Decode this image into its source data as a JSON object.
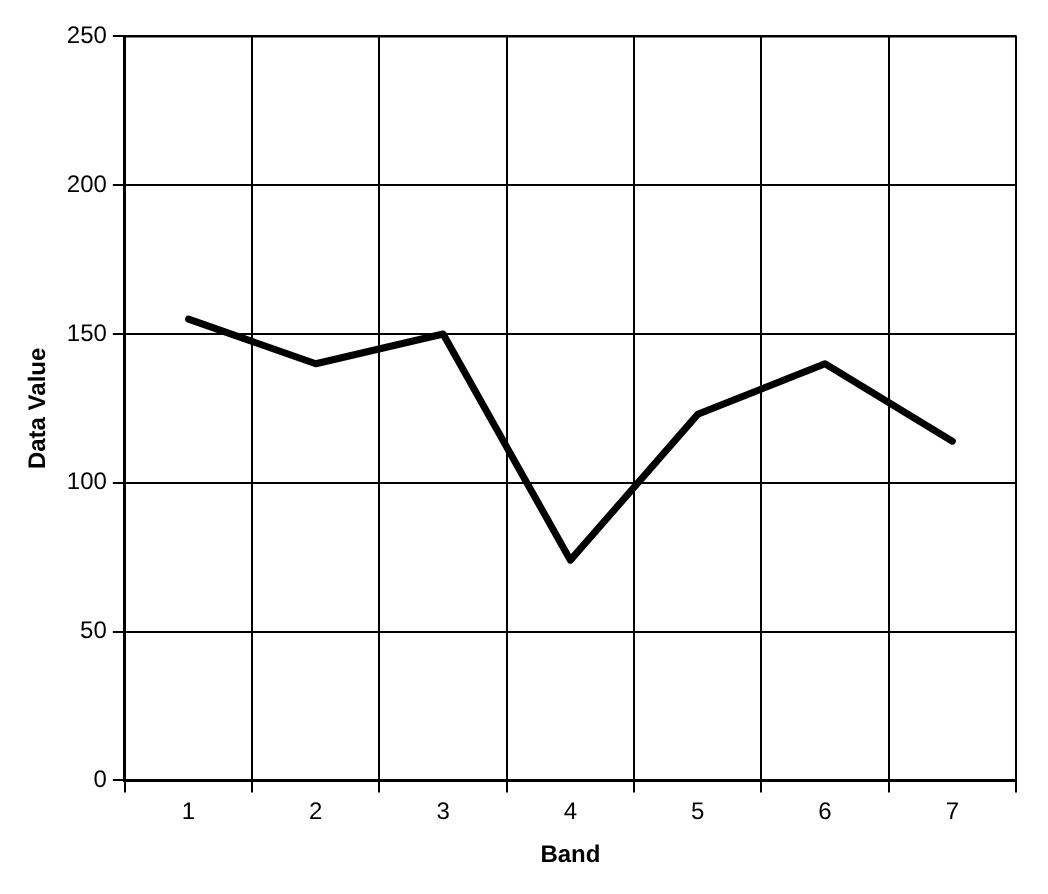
{
  "chart_data": {
    "type": "line",
    "xlabel": "Band",
    "ylabel": "Data Value",
    "categories": [
      "1",
      "2",
      "3",
      "4",
      "5",
      "6",
      "7"
    ],
    "series": [
      {
        "color": "#000000",
        "values": [
          155,
          140,
          150,
          74,
          123,
          140,
          114
        ]
      }
    ],
    "ylim": [
      0,
      250
    ],
    "yticks": [
      0,
      50,
      100,
      150,
      200,
      250
    ],
    "grid": true,
    "legend": false,
    "marker": "none",
    "line_style": "solid"
  }
}
